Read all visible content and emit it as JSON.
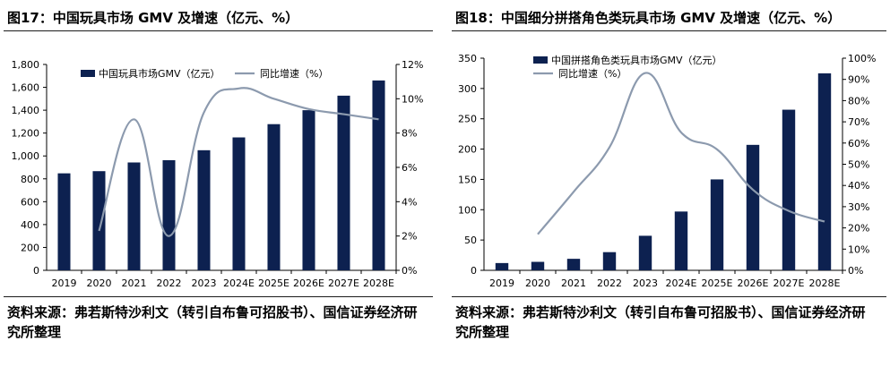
{
  "colors": {
    "bar": "#0d2150",
    "line": "#8c9aae",
    "axis": "#000000"
  },
  "panels": [
    {
      "title": "图17：中国玩具市场 GMV 及增速（亿元、%）",
      "source": "资料来源：弗若斯特沙利文（转引自布鲁可招股书）、国信证券经济研究所整理",
      "chart_data": {
        "type": "bar",
        "categories": [
          "2019",
          "2020",
          "2021",
          "2022",
          "2023",
          "2024E",
          "2025E",
          "2026E",
          "2027E",
          "2028E"
        ],
        "series": [
          {
            "name": "中国玩具市场GMV（亿元）",
            "type": "bar",
            "axis": "left",
            "values": [
              848,
              867,
              943,
              963,
              1050,
              1162,
              1278,
              1400,
              1527,
              1660
            ]
          },
          {
            "name": "同比增速（%）",
            "type": "line",
            "axis": "right",
            "values": [
              null,
              2.3,
              8.8,
              2.0,
              9.2,
              10.6,
              10.0,
              9.4,
              9.1,
              8.8
            ]
          }
        ],
        "y_left": {
          "ylim": [
            0,
            1800
          ],
          "ticks": [
            "0",
            "200",
            "400",
            "600",
            "800",
            "1,000",
            "1,200",
            "1,400",
            "1,600",
            "1,800"
          ]
        },
        "y_right": {
          "ylim": [
            0,
            12
          ],
          "ticks": [
            "0%",
            "2%",
            "4%",
            "6%",
            "8%",
            "10%",
            "12%"
          ]
        },
        "legend": "top"
      }
    },
    {
      "title": "图18：中国细分拼搭角色类玩具市场 GMV 及增速（亿元、%）",
      "source": "资料来源：弗若斯特沙利文（转引自布鲁可招股书）、国信证券经济研究所整理",
      "chart_data": {
        "type": "bar",
        "categories": [
          "2019",
          "2020",
          "2021",
          "2022",
          "2023",
          "2024E",
          "2025E",
          "2026E",
          "2027E",
          "2028E"
        ],
        "series": [
          {
            "name": "中国拼搭角色类玩具市场GMV（亿元）",
            "type": "bar",
            "axis": "left",
            "values": [
              12,
              14,
              19,
              30,
              57,
              97,
              150,
              207,
              265,
              325
            ]
          },
          {
            "name": "同比增速（%）",
            "type": "line",
            "axis": "right",
            "values": [
              null,
              17,
              37,
              58,
              93,
              65,
              57,
              38,
              28,
              23
            ]
          }
        ],
        "y_left": {
          "ylim": [
            0,
            350
          ],
          "ticks": [
            "0",
            "50",
            "100",
            "150",
            "200",
            "250",
            "300",
            "350"
          ]
        },
        "y_right": {
          "ylim": [
            0,
            100
          ],
          "ticks": [
            "0%",
            "10%",
            "20%",
            "30%",
            "40%",
            "50%",
            "60%",
            "70%",
            "80%",
            "90%",
            "100%"
          ]
        },
        "legend": "top-left"
      }
    }
  ]
}
